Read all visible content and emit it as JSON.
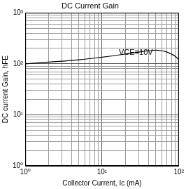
{
  "chart_data": {
    "type": "line",
    "title": "DC Current Gain",
    "x_label": "Collector Current, Ic (mA)",
    "y_label": "DC current Gain, hFE",
    "annotation": "VCE=10V",
    "x": [
      1,
      2,
      5,
      10,
      20,
      30,
      40,
      50,
      60,
      70,
      80,
      90,
      100
    ],
    "values": [
      100,
      108,
      120,
      135,
      155,
      170,
      180,
      185,
      180,
      170,
      155,
      140,
      120
    ],
    "color": "#000000",
    "log": true,
    "grid": true,
    "xlim": [
      1,
      100
    ],
    "ylim": [
      1,
      1000
    ],
    "xticks": [
      {
        "value": 1,
        "label": "10⁰"
      },
      {
        "value": 10,
        "label": "10¹"
      },
      {
        "value": 100,
        "label": "10²"
      }
    ],
    "yticks": [
      {
        "value": 1,
        "label": "10⁰"
      },
      {
        "value": 10,
        "label": "10¹"
      },
      {
        "value": 100,
        "label": "10²"
      },
      {
        "value": 1000,
        "label": "10³"
      }
    ]
  }
}
